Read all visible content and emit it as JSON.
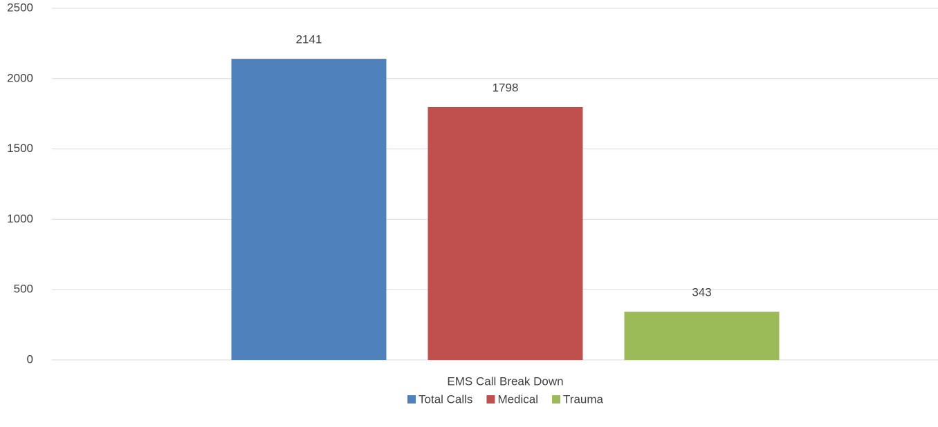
{
  "chart_data": {
    "type": "bar",
    "categories": [
      "EMS Call Break Down"
    ],
    "series": [
      {
        "name": "Total Calls",
        "color": "#4f81bd",
        "values": [
          2141
        ]
      },
      {
        "name": "Medical",
        "color": "#c0504d",
        "values": [
          1798
        ]
      },
      {
        "name": "Trauma",
        "color": "#9bbb59",
        "values": [
          343
        ]
      }
    ],
    "ylim": [
      0,
      2500
    ],
    "yticks": [
      0,
      500,
      1000,
      1500,
      2000,
      2500
    ],
    "grid": true,
    "legend": "bottom",
    "data_labels": true
  }
}
